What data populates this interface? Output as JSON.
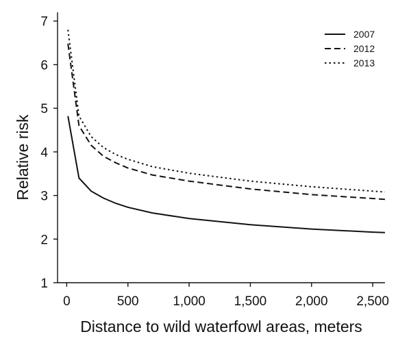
{
  "chart_data": {
    "type": "line",
    "title": "",
    "xlabel": "Distance to wild waterfowl areas, meters",
    "ylabel": "Relative risk",
    "xlim": [
      -75,
      2600
    ],
    "ylim": [
      1,
      7.2
    ],
    "xticks": [
      0,
      500,
      1000,
      1500,
      2000,
      2500
    ],
    "xtick_labels": [
      "0",
      "500",
      "1,000",
      "1,500",
      "2,000",
      "2,500"
    ],
    "yticks": [
      1,
      2,
      3,
      4,
      5,
      6,
      7
    ],
    "ytick_labels": [
      "1",
      "2",
      "3",
      "4",
      "5",
      "6",
      "7"
    ],
    "grid": false,
    "legend_position": "top-right",
    "x": [
      10,
      100,
      200,
      300,
      400,
      500,
      700,
      1000,
      1500,
      2000,
      2500,
      2600
    ],
    "series": [
      {
        "name": "2007",
        "style": "solid",
        "values": [
          4.82,
          3.4,
          3.1,
          2.94,
          2.82,
          2.73,
          2.6,
          2.47,
          2.33,
          2.23,
          2.16,
          2.15
        ]
      },
      {
        "name": "2012",
        "style": "dashed",
        "values": [
          6.48,
          4.6,
          4.15,
          3.9,
          3.75,
          3.63,
          3.47,
          3.33,
          3.15,
          3.02,
          2.93,
          2.91
        ]
      },
      {
        "name": "2013",
        "style": "dotted",
        "values": [
          6.8,
          4.82,
          4.35,
          4.1,
          3.94,
          3.83,
          3.66,
          3.51,
          3.33,
          3.2,
          3.1,
          3.08
        ]
      }
    ]
  }
}
